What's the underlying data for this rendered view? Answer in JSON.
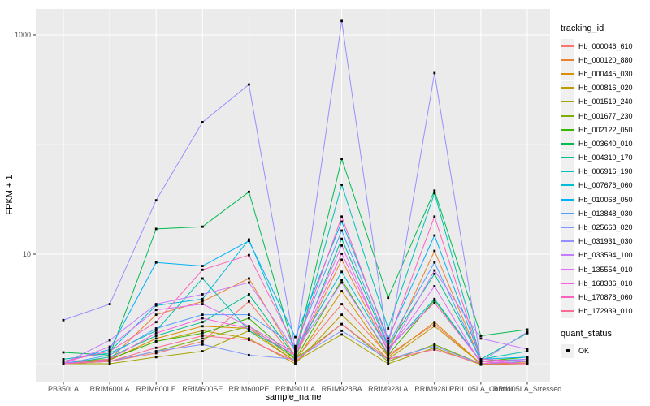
{
  "chart_data": {
    "type": "line",
    "title": "",
    "xlabel": "sample_name",
    "ylabel": "FPKM + 1",
    "y_scale": "log10",
    "y_major_ticks": [
      10,
      1000
    ],
    "y_minor_gridlines": [
      1,
      100
    ],
    "ylim": [
      0.9,
      1500
    ],
    "grid": "on",
    "legend_position": "right",
    "categories": [
      "PB350LA",
      "RRIM600LA",
      "RRIM600LE",
      "RRIM600SE",
      "RRIM600PE",
      "RRIM901LA",
      "RRIM928BA",
      "RRIM928LA",
      "RRIM928LE",
      "RRII105LA_Control",
      "RRII105LA_Stressed"
    ],
    "series": [
      {
        "name": "Hb_000046_610",
        "color": "#F8766D",
        "values": [
          1.02,
          1.05,
          1.25,
          1.6,
          3.7,
          1.1,
          3.5,
          1.2,
          2.3,
          1.0,
          1.05
        ]
      },
      {
        "name": "Hb_000120_880",
        "color": "#EA8331",
        "values": [
          1.0,
          1.1,
          2.8,
          3.7,
          6.0,
          1.15,
          8.9,
          1.3,
          10.7,
          1.05,
          1.0
        ]
      },
      {
        "name": "Hb_000445_030",
        "color": "#D89000",
        "values": [
          1.0,
          1.08,
          1.7,
          2.2,
          2.1,
          1.05,
          4.6,
          1.15,
          2.4,
          1.0,
          1.02
        ]
      },
      {
        "name": "Hb_000816_020",
        "color": "#C09B00",
        "values": [
          1.05,
          1.1,
          1.6,
          2.0,
          1.7,
          1.0,
          2.8,
          1.1,
          2.2,
          1.0,
          1.05
        ]
      },
      {
        "name": "Hb_001519_240",
        "color": "#A3A500",
        "values": [
          1.0,
          1.0,
          1.15,
          1.3,
          2.0,
          1.05,
          1.85,
          1.0,
          1.4,
          0.98,
          1.0
        ]
      },
      {
        "name": "Hb_001677_230",
        "color": "#7CAE00",
        "values": [
          1.0,
          1.05,
          1.3,
          1.7,
          2.2,
          1.1,
          2.3,
          1.05,
          1.5,
          1.0,
          1.1
        ]
      },
      {
        "name": "Hb_002122_050",
        "color": "#39B600",
        "values": [
          1.0,
          1.1,
          1.6,
          1.9,
          2.6,
          1.1,
          5.8,
          1.2,
          3.8,
          1.05,
          1.15
        ]
      },
      {
        "name": "Hb_003640_010",
        "color": "#00BB4E",
        "values": [
          1.27,
          1.2,
          17,
          17.8,
          37,
          1.25,
          74,
          4.0,
          38,
          1.8,
          2.05
        ]
      },
      {
        "name": "Hb_004310_170",
        "color": "#00C08D",
        "values": [
          1.0,
          1.15,
          1.8,
          2.4,
          4.3,
          1.15,
          13.8,
          1.45,
          6.6,
          1.1,
          1.9
        ]
      },
      {
        "name": "Hb_006916_190",
        "color": "#00C0B4",
        "values": [
          1.1,
          1.25,
          2.0,
          6.0,
          2.0,
          1.2,
          43,
          2.1,
          36,
          1.1,
          1.3
        ]
      },
      {
        "name": "Hb_007676_060",
        "color": "#00BCD8",
        "values": [
          1.05,
          1.3,
          3.4,
          3.9,
          13.6,
          1.3,
          6.9,
          1.35,
          3.9,
          1.05,
          1.1
        ]
      },
      {
        "name": "Hb_010068_050",
        "color": "#00B0F6",
        "values": [
          1.05,
          1.35,
          8.4,
          7.8,
          13.2,
          1.75,
          19.8,
          1.7,
          14.8,
          1.1,
          1.15
        ]
      },
      {
        "name": "Hb_013848_030",
        "color": "#529EFF",
        "values": [
          1.0,
          1.2,
          2.1,
          2.8,
          2.8,
          1.45,
          16.4,
          1.5,
          8.4,
          1.05,
          1.1
        ]
      },
      {
        "name": "Hb_025668_020",
        "color": "#7F96FF",
        "values": [
          1.0,
          1.05,
          1.3,
          1.5,
          1.2,
          1.1,
          2.0,
          1.1,
          1.45,
          1.0,
          1.05
        ]
      },
      {
        "name": "Hb_031931_030",
        "color": "#9590FF",
        "values": [
          2.5,
          3.5,
          31,
          160,
          353,
          1.35,
          1340,
          1.4,
          449,
          1.05,
          1.95
        ]
      },
      {
        "name": "Hb_033594_100",
        "color": "#C77CFF",
        "values": [
          1.0,
          1.64,
          3.5,
          4.3,
          5.5,
          1.3,
          5.5,
          1.25,
          7.1,
          1.7,
          1.36
        ]
      },
      {
        "name": "Hb_135554_010",
        "color": "#E06EF7",
        "values": [
          1.0,
          1.43,
          3.1,
          3.5,
          2.2,
          1.25,
          12.0,
          1.3,
          5.1,
          1.0,
          1.1
        ]
      },
      {
        "name": "Hb_168386_010",
        "color": "#F763DF",
        "values": [
          1.0,
          1.1,
          1.9,
          2.6,
          2.1,
          1.2,
          10.1,
          1.4,
          3.6,
          1.05,
          1.0
        ]
      },
      {
        "name": "Hb_170878_060",
        "color": "#FF62BE",
        "values": [
          1.05,
          1.3,
          2.4,
          7.2,
          9.8,
          1.4,
          22,
          1.6,
          22,
          1.1,
          1.05
        ]
      },
      {
        "name": "Hb_172939_010",
        "color": "#FF6B94",
        "values": [
          1.0,
          1.05,
          1.4,
          1.8,
          1.65,
          1.05,
          2.3,
          1.1,
          1.35,
          1.0,
          1.0
        ]
      }
    ]
  },
  "legend": {
    "tracking_title": "tracking_id",
    "quant_title": "quant_status",
    "quant_ok_label": "OK"
  },
  "colors": {
    "panel_bg": "#EBEBEB",
    "grid": "#FFFFFF",
    "tick_text": "#4D4D4D",
    "tick_mark": "#333333",
    "point": "#000000",
    "legend_key_bg": "#F0F0F0"
  }
}
